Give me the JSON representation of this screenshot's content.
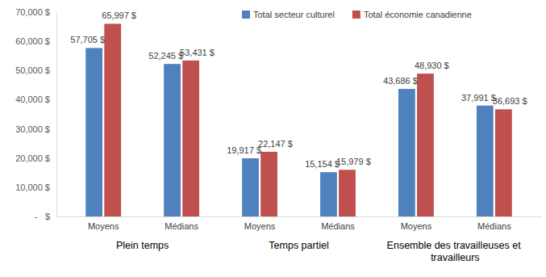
{
  "chart_data": {
    "type": "bar",
    "categories": [
      "Moyens",
      "Médians",
      "Moyens",
      "Médians",
      "Moyens",
      "Médians"
    ],
    "category_groups": [
      "Plein temps",
      "Temps partiel",
      "Ensemble des travailleuses et travailleurs"
    ],
    "series": [
      {
        "name": "Total secteur culturel",
        "color": "#4f81bd",
        "values": [
          57705,
          52245,
          19917,
          15154,
          43686,
          37991
        ],
        "value_labels": [
          "57,705 $",
          "52,245 $",
          "19,917 $",
          "15,154 $",
          "43,686 $",
          "37,991 $"
        ]
      },
      {
        "name": "Total économie canadienne",
        "color": "#c0504d",
        "values": [
          65997,
          53431,
          22147,
          15979,
          48930,
          36693
        ],
        "value_labels": [
          "65,997 $",
          "53,431 $",
          "22,147 $",
          "15,979 $",
          "48,930 $",
          "36,693 $"
        ]
      }
    ],
    "ylim": [
      0,
      70000
    ],
    "yticks": [
      {
        "value": 0,
        "label": "-   $"
      },
      {
        "value": 10000,
        "label": "10,000 $"
      },
      {
        "value": 20000,
        "label": "20,000 $"
      },
      {
        "value": 30000,
        "label": "30,000 $"
      },
      {
        "value": 40000,
        "label": "40,000 $"
      },
      {
        "value": 50000,
        "label": "50,000 $"
      },
      {
        "value": 60000,
        "label": "60,000 $"
      },
      {
        "value": 70000,
        "label": "70,000 $"
      }
    ],
    "grid": false,
    "legend": "top",
    "data_labels": true
  }
}
